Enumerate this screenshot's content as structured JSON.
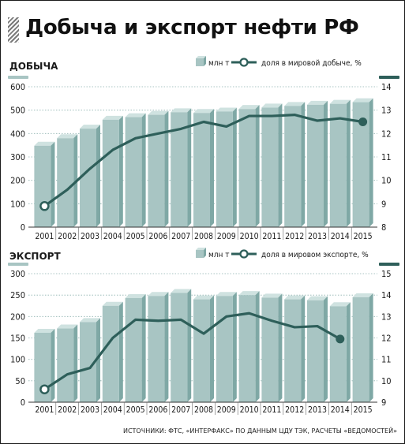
{
  "title": "Добыча и экспорт нефти РФ",
  "source": "ИСТОЧНИКИ: ФТС, «ИНТЕРФАКС» ПО ДАННЫМ ЦДУ ТЭК, РАСЧЕТЫ «ВЕДОМОСТЕЙ»",
  "colors": {
    "bar_front": "#a8c5c3",
    "bar_side": "#7fa8a5",
    "bar_top": "#cfe2e0",
    "line": "#2e5f5a",
    "grid": "#8fb3b0",
    "text": "#1a1a1a"
  },
  "chart_data": [
    {
      "type": "bar",
      "title": "ДОБЫЧА",
      "categories": [
        "2001",
        "2002",
        "2003",
        "2004",
        "2005",
        "2006",
        "2007",
        "2008",
        "2009",
        "2010",
        "2011",
        "2012",
        "2013",
        "2014",
        "2015"
      ],
      "series": [
        {
          "name": "млн т",
          "type": "bar",
          "axis": "left",
          "values": [
            348,
            380,
            421,
            459,
            470,
            480,
            491,
            488,
            494,
            505,
            511,
            518,
            523,
            527,
            534
          ]
        },
        {
          "name": "доля в мировой добыче, %",
          "type": "line",
          "axis": "right",
          "values": [
            8.9,
            9.6,
            10.5,
            11.3,
            11.8,
            12.0,
            12.2,
            12.5,
            12.3,
            12.75,
            12.75,
            12.8,
            12.55,
            12.65,
            12.5
          ]
        }
      ],
      "ylim_left": [
        0,
        600
      ],
      "ylim_right": [
        8,
        14
      ],
      "yticks_left": [
        "0",
        "100",
        "200",
        "300",
        "400",
        "500",
        "600"
      ],
      "yticks_right": [
        "8",
        "9",
        "10",
        "11",
        "12",
        "13",
        "14"
      ],
      "legend": "top-right",
      "grid": true
    },
    {
      "type": "bar",
      "title": "ЭКСПОРТ",
      "categories": [
        "2001",
        "2002",
        "2003",
        "2004",
        "2005",
        "2006",
        "2007",
        "2008",
        "2009",
        "2010",
        "2011",
        "2012",
        "2013",
        "2014",
        "2015"
      ],
      "series": [
        {
          "name": "млн т",
          "type": "bar",
          "axis": "left",
          "values": [
            162,
            172,
            187,
            225,
            243,
            248,
            255,
            240,
            248,
            250,
            244,
            240,
            238,
            224,
            245
          ]
        },
        {
          "name": "доля в мировом экспорте, %",
          "type": "line",
          "axis": "right",
          "values": [
            9.6,
            10.3,
            10.6,
            12.0,
            12.85,
            12.8,
            12.85,
            12.2,
            13.0,
            13.15,
            12.8,
            12.5,
            12.55,
            11.95,
            null
          ]
        }
      ],
      "ylim_left": [
        0,
        300
      ],
      "ylim_right": [
        9,
        15
      ],
      "yticks_left": [
        "0",
        "50",
        "100",
        "150",
        "200",
        "250",
        "300"
      ],
      "yticks_right": [
        "9",
        "10",
        "11",
        "12",
        "13",
        "14",
        "15"
      ],
      "legend": "top-right",
      "grid": true
    }
  ]
}
